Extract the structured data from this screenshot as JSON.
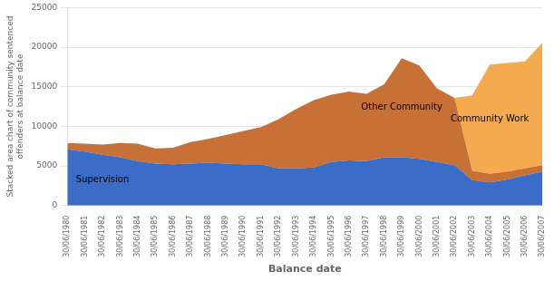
{
  "chart_data": {
    "type": "area",
    "stacked": true,
    "xlabel": "Balance date",
    "ylabel": "Stacked area chart of community sentenced\noffenders at balance date",
    "categories": [
      "30/06/1980",
      "30/06/1981",
      "30/06/1982",
      "30/06/1983",
      "30/06/1984",
      "30/06/1985",
      "30/06/1986",
      "30/06/1987",
      "30/06/1988",
      "30/06/1989",
      "30/06/1990",
      "30/06/1991",
      "30/06/1992",
      "30/06/1993",
      "30/06/1994",
      "30/06/1995",
      "30/06/1996",
      "30/06/1997",
      "30/06/1998",
      "30/06/1999",
      "30/06/2000",
      "30/06/2001",
      "30/06/2002",
      "30/06/2003",
      "30/06/2004",
      "30/06/2005",
      "30/06/2006",
      "30/06/2007"
    ],
    "series": [
      {
        "name": "Supervision",
        "color": "#3a6cc8",
        "values": [
          7100,
          6800,
          6400,
          6100,
          5600,
          5300,
          5200,
          5300,
          5400,
          5300,
          5200,
          5200,
          4700,
          4700,
          4800,
          5500,
          5700,
          5600,
          6100,
          6100,
          5900,
          5500,
          5100,
          3200,
          2900,
          3300,
          3800,
          4300
        ]
      },
      {
        "name": "Other Community",
        "color": "#c87137",
        "values": [
          800,
          1000,
          1300,
          1800,
          2200,
          1900,
          2100,
          2700,
          3000,
          3600,
          4200,
          4700,
          6200,
          7500,
          8500,
          8500,
          8700,
          8500,
          9200,
          12500,
          11800,
          9300,
          8500,
          1200,
          1100,
          1000,
          900,
          800
        ]
      },
      {
        "name": "Community Work",
        "color": "#f5aa50",
        "values": [
          0,
          0,
          0,
          0,
          0,
          0,
          0,
          0,
          0,
          0,
          0,
          0,
          0,
          0,
          0,
          0,
          0,
          0,
          0,
          0,
          0,
          0,
          0,
          9500,
          13800,
          13700,
          13500,
          15500
        ]
      }
    ],
    "ylim": [
      0,
      25000
    ],
    "yticks": [
      0,
      5000,
      10000,
      15000,
      20000,
      25000
    ],
    "grid": "y"
  }
}
